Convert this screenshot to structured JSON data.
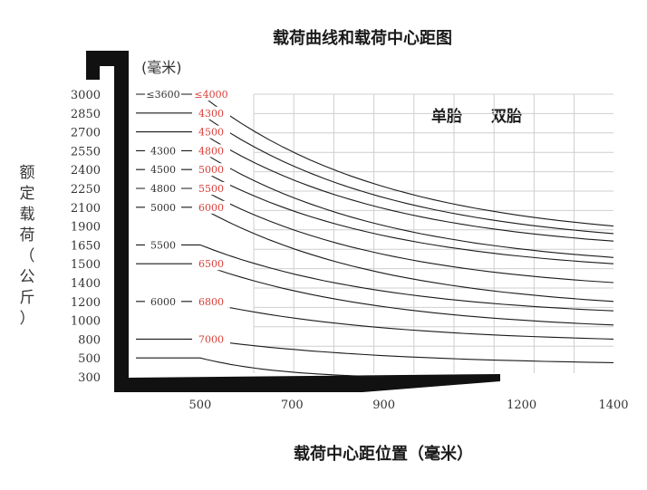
{
  "chart_data": {
    "type": "line",
    "title": "载荷曲线和载荷中心距图",
    "xlabel": "载荷中心距位置（毫米）",
    "ylabel": "额定载荷（公斤）",
    "yunit": "(毫米)",
    "legend": [
      "单胎",
      "双胎"
    ],
    "x_ticks": [
      "500",
      "700",
      "900",
      "1200",
      "1400"
    ],
    "x_tick_values": [
      500,
      700,
      900,
      1200,
      1400
    ],
    "xlim": [
      360,
      1400
    ],
    "y_ticks": [
      "3000",
      "2850",
      "2700",
      "2550",
      "2400",
      "2250",
      "2100",
      "1900",
      "1650",
      "1500",
      "1400",
      "1200",
      "1000",
      "800",
      "500",
      "300"
    ],
    "grid": true,
    "curve_labels": [
      {
        "y_tick": "3000",
        "single": "≤3600",
        "double": "≤4000"
      },
      {
        "y_tick": "2850",
        "single": "",
        "double": "4300"
      },
      {
        "y_tick": "2700",
        "single": "",
        "double": "4500"
      },
      {
        "y_tick": "2550",
        "single": "4300",
        "double": "4800"
      },
      {
        "y_tick": "2400",
        "single": "4500",
        "double": "5000"
      },
      {
        "y_tick": "2250",
        "single": "4800",
        "double": "5500"
      },
      {
        "y_tick": "2100",
        "single": "5000",
        "double": "6000"
      },
      {
        "y_tick": "1650",
        "single": "5500",
        "double": ""
      },
      {
        "y_tick": "1500",
        "single": "",
        "double": "6500"
      },
      {
        "y_tick": "1200",
        "single": "6000",
        "double": "6800"
      },
      {
        "y_tick": "800",
        "single": "",
        "double": "7000"
      }
    ],
    "series": [
      {
        "start_y_tick": "3000",
        "x": [
          500,
          1400
        ],
        "y": [
          3000,
          1900
        ]
      },
      {
        "start_y_tick": "2850",
        "x": [
          500,
          1400
        ],
        "y": [
          2850,
          1800
        ]
      },
      {
        "start_y_tick": "2700",
        "x": [
          500,
          1400
        ],
        "y": [
          2700,
          1700
        ]
      },
      {
        "start_y_tick": "2550",
        "x": [
          500,
          1400
        ],
        "y": [
          2550,
          1550
        ]
      },
      {
        "start_y_tick": "2400",
        "x": [
          500,
          1400
        ],
        "y": [
          2400,
          1500
        ]
      },
      {
        "start_y_tick": "2250",
        "x": [
          500,
          1400
        ],
        "y": [
          2250,
          1400
        ]
      },
      {
        "start_y_tick": "2100",
        "x": [
          500,
          1400
        ],
        "y": [
          2100,
          1200
        ]
      },
      {
        "start_y_tick": "1650",
        "x": [
          500,
          1400
        ],
        "y": [
          1650,
          1100
        ]
      },
      {
        "start_y_tick": "1500",
        "x": [
          500,
          1400
        ],
        "y": [
          1500,
          950
        ]
      },
      {
        "start_y_tick": "1200",
        "x": [
          500,
          1400
        ],
        "y": [
          1200,
          800
        ]
      },
      {
        "start_y_tick": "800",
        "x": [
          500,
          1400
        ],
        "y": [
          800,
          450
        ]
      },
      {
        "start_y_tick": "500",
        "x": [
          500,
          900
        ],
        "y": [
          500,
          300
        ]
      }
    ]
  }
}
